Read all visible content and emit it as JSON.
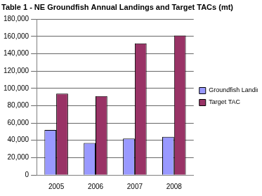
{
  "chart_data": {
    "type": "bar",
    "title": "Table 1 - NE Groundfish Annual Landings and Target TACs (mt)",
    "categories": [
      "2005",
      "2006",
      "2007",
      "2008"
    ],
    "series": [
      {
        "name": "Groundfish Landings",
        "color": "#9999ff",
        "values": [
          52000,
          37000,
          42000,
          44000
        ]
      },
      {
        "name": "Target TAC",
        "color": "#993366",
        "values": [
          94000,
          91000,
          152000,
          161000
        ]
      }
    ],
    "ylim": [
      0,
      180000
    ],
    "yticks": [
      0,
      {
        "value": 20000,
        "label": "20,000"
      },
      {
        "value": 40000,
        "label": "40,000"
      },
      {
        "value": 60000,
        "label": "60,000"
      },
      {
        "value": 80000,
        "label": "80,000"
      },
      {
        "value": 100000,
        "label": "100,000"
      },
      {
        "value": 120000,
        "label": "120,000"
      },
      {
        "value": 140000,
        "label": "140,000"
      },
      {
        "value": 160000,
        "label": "160,000"
      },
      {
        "value": 180000,
        "label": "180,000"
      }
    ],
    "grid": true,
    "legend": "right"
  }
}
